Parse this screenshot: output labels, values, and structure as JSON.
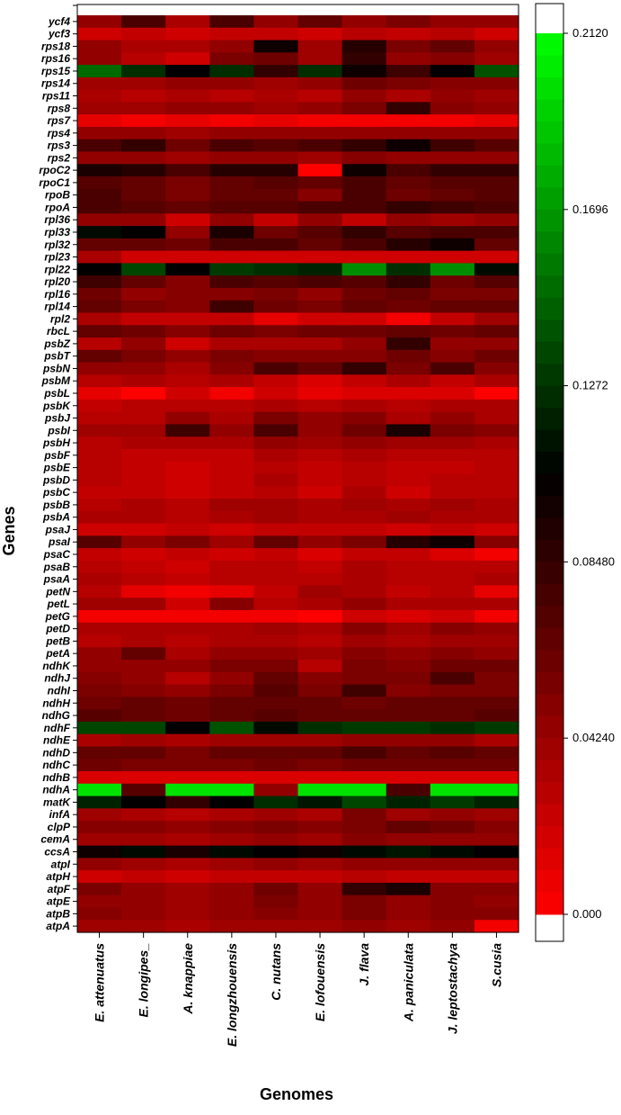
{
  "chart_data": {
    "type": "heatmap",
    "xlabel": "Genomes",
    "ylabel": "Genes",
    "x_categories": [
      "E. attenuatus",
      "E. longipes_",
      "A. knappiae",
      "E. longzhouensis",
      "C. nutans",
      "E. lofouensis",
      "J. flava",
      "A. paniculata",
      "J. leptostachya",
      "S.cusia"
    ],
    "y_categories": [
      "ycf4",
      "ycf3",
      "rps18",
      "rps16",
      "rps15",
      "rps14",
      "rps11",
      "rps8",
      "rps7",
      "rps4",
      "rps3",
      "rps2",
      "rpoC2",
      "rpoC1",
      "rpoB",
      "rpoA",
      "rpl36",
      "rpl33",
      "rpl32",
      "rpl23",
      "rpl22",
      "rpl20",
      "rpl16",
      "rpl14",
      "rpl2",
      "rbcL",
      "psbZ",
      "psbT",
      "psbN",
      "psbM",
      "psbL",
      "psbK",
      "psbJ",
      "psbI",
      "psbH",
      "psbF",
      "psbE",
      "psbD",
      "psbC",
      "psbB",
      "psbA",
      "psaJ",
      "psaI",
      "psaC",
      "psaB",
      "psaA",
      "petN",
      "petL",
      "petG",
      "petD",
      "petB",
      "petA",
      "ndhK",
      "ndhJ",
      "ndhI",
      "ndhH",
      "ndhG",
      "ndhF",
      "ndhE",
      "ndhD",
      "ndhC",
      "ndhB",
      "ndhA",
      "matK",
      "infA",
      "clpP",
      "cemA",
      "ccsA",
      "atpI",
      "atpH",
      "atpF",
      "atpE",
      "atpB",
      "atpA"
    ],
    "values": [
      [
        0.045,
        0.075,
        0.035,
        0.075,
        0.045,
        0.065,
        0.045,
        0.055,
        0.045,
        0.045
      ],
      [
        0.02,
        0.025,
        0.02,
        0.025,
        0.025,
        0.02,
        0.03,
        0.025,
        0.03,
        0.02
      ],
      [
        0.045,
        0.035,
        0.035,
        0.045,
        0.1,
        0.04,
        0.09,
        0.055,
        0.065,
        0.045
      ],
      [
        0.045,
        0.03,
        0.02,
        0.055,
        0.06,
        0.04,
        0.085,
        0.045,
        0.05,
        0.04
      ],
      [
        0.15,
        0.125,
        0.105,
        0.125,
        0.085,
        0.125,
        0.1,
        0.08,
        0.105,
        0.14
      ],
      [
        0.04,
        0.04,
        0.045,
        0.045,
        0.04,
        0.045,
        0.06,
        0.055,
        0.05,
        0.05
      ],
      [
        0.035,
        0.03,
        0.035,
        0.03,
        0.035,
        0.03,
        0.045,
        0.035,
        0.045,
        0.04
      ],
      [
        0.04,
        0.04,
        0.045,
        0.045,
        0.04,
        0.045,
        0.055,
        0.085,
        0.05,
        0.045
      ],
      [
        0.01,
        0.005,
        0.01,
        0.005,
        0.01,
        0.005,
        0.005,
        0.005,
        0.005,
        0.01
      ],
      [
        0.045,
        0.045,
        0.04,
        0.045,
        0.045,
        0.045,
        0.045,
        0.045,
        0.045,
        0.045
      ],
      [
        0.075,
        0.085,
        0.06,
        0.075,
        0.07,
        0.075,
        0.085,
        0.1,
        0.08,
        0.07
      ],
      [
        0.045,
        0.045,
        0.04,
        0.045,
        0.045,
        0.04,
        0.05,
        0.045,
        0.045,
        0.045
      ],
      [
        0.095,
        0.09,
        0.075,
        0.09,
        0.09,
        0.0,
        0.1,
        0.075,
        0.085,
        0.085
      ],
      [
        0.07,
        0.065,
        0.055,
        0.065,
        0.07,
        0.065,
        0.075,
        0.065,
        0.07,
        0.07
      ],
      [
        0.075,
        0.065,
        0.055,
        0.065,
        0.065,
        0.05,
        0.075,
        0.06,
        0.065,
        0.07
      ],
      [
        0.075,
        0.07,
        0.065,
        0.07,
        0.07,
        0.075,
        0.075,
        0.085,
        0.08,
        0.075
      ],
      [
        0.045,
        0.045,
        0.02,
        0.045,
        0.025,
        0.045,
        0.025,
        0.045,
        0.04,
        0.045
      ],
      [
        0.11,
        0.105,
        0.045,
        0.095,
        0.06,
        0.07,
        0.085,
        0.07,
        0.075,
        0.075
      ],
      [
        0.065,
        0.065,
        0.06,
        0.075,
        0.075,
        0.065,
        0.075,
        0.09,
        0.1,
        0.065
      ],
      [
        0.035,
        0.02,
        0.02,
        0.02,
        0.02,
        0.02,
        0.02,
        0.02,
        0.02,
        0.02
      ],
      [
        0.105,
        0.135,
        0.105,
        0.13,
        0.125,
        0.12,
        0.165,
        0.125,
        0.165,
        0.11
      ],
      [
        0.08,
        0.065,
        0.05,
        0.075,
        0.07,
        0.075,
        0.07,
        0.085,
        0.06,
        0.07
      ],
      [
        0.06,
        0.045,
        0.05,
        0.05,
        0.055,
        0.045,
        0.06,
        0.065,
        0.055,
        0.055
      ],
      [
        0.065,
        0.055,
        0.05,
        0.08,
        0.06,
        0.055,
        0.065,
        0.06,
        0.065,
        0.065
      ],
      [
        0.035,
        0.025,
        0.025,
        0.025,
        0.01,
        0.02,
        0.02,
        0.005,
        0.025,
        0.04
      ],
      [
        0.065,
        0.06,
        0.05,
        0.06,
        0.055,
        0.06,
        0.06,
        0.065,
        0.06,
        0.065
      ],
      [
        0.03,
        0.045,
        0.02,
        0.035,
        0.035,
        0.035,
        0.045,
        0.085,
        0.045,
        0.045
      ],
      [
        0.065,
        0.055,
        0.045,
        0.055,
        0.05,
        0.05,
        0.05,
        0.06,
        0.05,
        0.06
      ],
      [
        0.045,
        0.045,
        0.035,
        0.05,
        0.075,
        0.065,
        0.085,
        0.055,
        0.075,
        0.05
      ],
      [
        0.03,
        0.035,
        0.03,
        0.035,
        0.025,
        0.015,
        0.025,
        0.035,
        0.025,
        0.035
      ],
      [
        0.01,
        0.0,
        0.02,
        0.005,
        0.02,
        0.01,
        0.015,
        0.015,
        0.015,
        0.0
      ],
      [
        0.025,
        0.03,
        0.03,
        0.03,
        0.035,
        0.03,
        0.035,
        0.03,
        0.035,
        0.035
      ],
      [
        0.03,
        0.03,
        0.045,
        0.035,
        0.055,
        0.045,
        0.05,
        0.035,
        0.045,
        0.035
      ],
      [
        0.04,
        0.04,
        0.08,
        0.045,
        0.075,
        0.045,
        0.06,
        0.095,
        0.055,
        0.05
      ],
      [
        0.03,
        0.035,
        0.035,
        0.035,
        0.045,
        0.04,
        0.045,
        0.04,
        0.04,
        0.035
      ],
      [
        0.03,
        0.025,
        0.025,
        0.025,
        0.035,
        0.03,
        0.035,
        0.03,
        0.03,
        0.03
      ],
      [
        0.03,
        0.025,
        0.02,
        0.025,
        0.03,
        0.025,
        0.03,
        0.025,
        0.025,
        0.03
      ],
      [
        0.03,
        0.025,
        0.02,
        0.025,
        0.035,
        0.025,
        0.03,
        0.025,
        0.03,
        0.03
      ],
      [
        0.025,
        0.025,
        0.02,
        0.025,
        0.03,
        0.02,
        0.035,
        0.02,
        0.03,
        0.03
      ],
      [
        0.03,
        0.035,
        0.03,
        0.04,
        0.04,
        0.035,
        0.04,
        0.035,
        0.04,
        0.035
      ],
      [
        0.035,
        0.035,
        0.03,
        0.035,
        0.04,
        0.035,
        0.035,
        0.04,
        0.035,
        0.035
      ],
      [
        0.02,
        0.02,
        0.025,
        0.02,
        0.025,
        0.025,
        0.025,
        0.02,
        0.025,
        0.02
      ],
      [
        0.07,
        0.045,
        0.055,
        0.04,
        0.065,
        0.045,
        0.055,
        0.09,
        0.1,
        0.05
      ],
      [
        0.025,
        0.02,
        0.025,
        0.02,
        0.025,
        0.015,
        0.025,
        0.025,
        0.015,
        0.005
      ],
      [
        0.03,
        0.025,
        0.02,
        0.03,
        0.03,
        0.025,
        0.035,
        0.03,
        0.03,
        0.03
      ],
      [
        0.035,
        0.03,
        0.025,
        0.03,
        0.03,
        0.03,
        0.035,
        0.03,
        0.03,
        0.035
      ],
      [
        0.03,
        0.01,
        0.005,
        0.01,
        0.025,
        0.04,
        0.035,
        0.025,
        0.03,
        0.01
      ],
      [
        0.04,
        0.04,
        0.02,
        0.05,
        0.03,
        0.035,
        0.045,
        0.035,
        0.035,
        0.035
      ],
      [
        0.005,
        0.005,
        0.005,
        0.005,
        0.005,
        0.0,
        0.02,
        0.015,
        0.02,
        0.005
      ],
      [
        0.035,
        0.035,
        0.035,
        0.035,
        0.04,
        0.035,
        0.05,
        0.04,
        0.05,
        0.045
      ],
      [
        0.03,
        0.035,
        0.03,
        0.035,
        0.035,
        0.03,
        0.04,
        0.035,
        0.04,
        0.04
      ],
      [
        0.045,
        0.065,
        0.035,
        0.045,
        0.045,
        0.04,
        0.05,
        0.045,
        0.05,
        0.045
      ],
      [
        0.045,
        0.045,
        0.045,
        0.055,
        0.055,
        0.03,
        0.055,
        0.05,
        0.06,
        0.06
      ],
      [
        0.05,
        0.045,
        0.03,
        0.045,
        0.065,
        0.05,
        0.055,
        0.055,
        0.075,
        0.055
      ],
      [
        0.055,
        0.05,
        0.045,
        0.055,
        0.07,
        0.055,
        0.08,
        0.05,
        0.055,
        0.055
      ],
      [
        0.06,
        0.065,
        0.06,
        0.065,
        0.065,
        0.065,
        0.06,
        0.065,
        0.065,
        0.065
      ],
      [
        0.07,
        0.065,
        0.06,
        0.065,
        0.07,
        0.065,
        0.065,
        0.065,
        0.065,
        0.07
      ],
      [
        0.135,
        0.135,
        0.105,
        0.14,
        0.11,
        0.125,
        0.13,
        0.13,
        0.125,
        0.13
      ],
      [
        0.035,
        0.04,
        0.035,
        0.04,
        0.04,
        0.04,
        0.045,
        0.045,
        0.045,
        0.035
      ],
      [
        0.065,
        0.065,
        0.055,
        0.065,
        0.065,
        0.065,
        0.075,
        0.065,
        0.07,
        0.065
      ],
      [
        0.06,
        0.055,
        0.055,
        0.055,
        0.06,
        0.055,
        0.06,
        0.06,
        0.06,
        0.06
      ],
      [
        0.015,
        0.015,
        0.015,
        0.015,
        0.015,
        0.015,
        0.015,
        0.015,
        0.015,
        0.015
      ],
      [
        0.2,
        0.07,
        0.2,
        0.2,
        0.045,
        0.2,
        0.2,
        0.075,
        0.2,
        0.2
      ],
      [
        0.12,
        0.105,
        0.085,
        0.105,
        0.125,
        0.115,
        0.135,
        0.12,
        0.13,
        0.12
      ],
      [
        0.04,
        0.035,
        0.03,
        0.035,
        0.04,
        0.035,
        0.055,
        0.04,
        0.045,
        0.04
      ],
      [
        0.05,
        0.05,
        0.045,
        0.05,
        0.055,
        0.05,
        0.055,
        0.065,
        0.06,
        0.05
      ],
      [
        0.04,
        0.04,
        0.035,
        0.04,
        0.045,
        0.04,
        0.05,
        0.045,
        0.045,
        0.045
      ],
      [
        0.1,
        0.11,
        0.095,
        0.11,
        0.105,
        0.1,
        0.11,
        0.115,
        0.11,
        0.105
      ],
      [
        0.045,
        0.04,
        0.035,
        0.04,
        0.045,
        0.04,
        0.045,
        0.045,
        0.045,
        0.045
      ],
      [
        0.02,
        0.025,
        0.02,
        0.025,
        0.025,
        0.025,
        0.03,
        0.025,
        0.025,
        0.025
      ],
      [
        0.055,
        0.045,
        0.04,
        0.045,
        0.06,
        0.045,
        0.085,
        0.095,
        0.05,
        0.05
      ],
      [
        0.045,
        0.045,
        0.04,
        0.045,
        0.055,
        0.045,
        0.055,
        0.045,
        0.05,
        0.045
      ],
      [
        0.05,
        0.045,
        0.04,
        0.045,
        0.05,
        0.045,
        0.055,
        0.045,
        0.05,
        0.05
      ],
      [
        0.04,
        0.04,
        0.035,
        0.04,
        0.04,
        0.04,
        0.045,
        0.04,
        0.045,
        0.005
      ]
    ],
    "colorbar": {
      "ticks": [
        "0.2120",
        "0.1696",
        "0.1272",
        "0.08480",
        "0.04240",
        "0.000"
      ],
      "min": 0.0,
      "max": 0.212,
      "colors": {
        "low": "#ff0000",
        "mid": "#000000",
        "high": "#00ff00",
        "empty": "#ffffff"
      }
    },
    "grid": false
  }
}
